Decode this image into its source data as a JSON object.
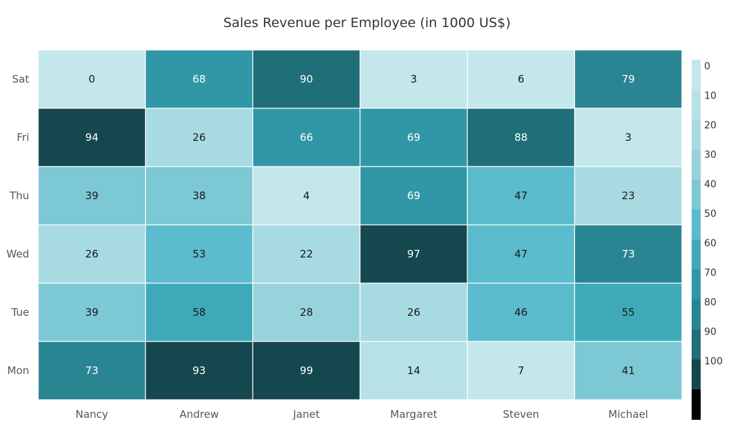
{
  "chart_data": {
    "type": "heatmap",
    "title": "Sales Revenue per Employee (in 1000 US$)",
    "xlabel": "",
    "ylabel": "",
    "x_categories": [
      "Nancy",
      "Andrew",
      "Janet",
      "Margaret",
      "Steven",
      "Michael"
    ],
    "y_categories": [
      "Sat",
      "Fri",
      "Thu",
      "Wed",
      "Tue",
      "Mon"
    ],
    "values": [
      [
        0,
        68,
        90,
        3,
        6,
        79
      ],
      [
        94,
        26,
        66,
        69,
        88,
        3
      ],
      [
        39,
        38,
        4,
        69,
        47,
        23
      ],
      [
        26,
        53,
        22,
        97,
        47,
        73
      ],
      [
        39,
        58,
        28,
        26,
        46,
        55
      ],
      [
        73,
        93,
        99,
        14,
        7,
        41
      ]
    ],
    "color_range": [
      0,
      100
    ],
    "legend": {
      "position": "right",
      "ticks": [
        "0",
        "10",
        "20",
        "30",
        "40",
        "50",
        "60",
        "70",
        "80",
        "90",
        "100"
      ],
      "colors": [
        "#C4E7EC",
        "#B7E1E8",
        "#A8DAE2",
        "#98D3DC",
        "#7CC8D4",
        "#5ABCCC",
        "#3FA9B9",
        "#2F97A6",
        "#2A8592",
        "#1F6E78",
        "#15474E",
        "#000000"
      ]
    },
    "grid": false
  }
}
